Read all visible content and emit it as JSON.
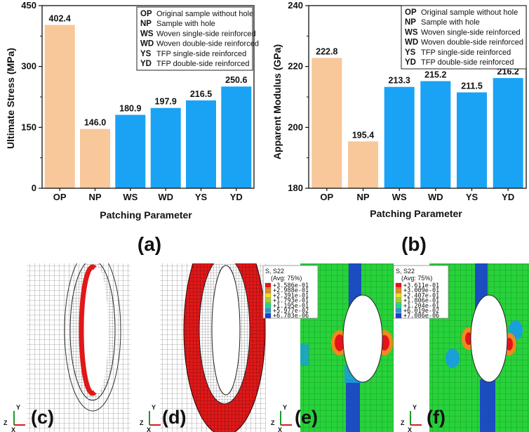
{
  "colors": {
    "peach": "#f8c79a",
    "blue": "#1aa3f5"
  },
  "chart_data": [
    {
      "type": "bar",
      "panel": "(a)",
      "categories": [
        "OP",
        "NP",
        "WS",
        "WD",
        "YS",
        "YD"
      ],
      "values": [
        402.4,
        146.0,
        180.9,
        197.9,
        216.5,
        250.6
      ],
      "value_labels": [
        "402.4",
        "146.0",
        "180.9",
        "197.9",
        "216.5",
        "250.6"
      ],
      "bar_colors": [
        "peach",
        "peach",
        "blue",
        "blue",
        "blue",
        "blue"
      ],
      "ylim": [
        0,
        450
      ],
      "yticks": [
        0,
        150,
        300,
        450
      ],
      "ytick_labels": [
        "0",
        "150",
        "300",
        "450"
      ],
      "xlabel": "Patching Parameter",
      "ylabel": "Ultimate Stress (MPa)",
      "legend_location": "top-right"
    },
    {
      "type": "bar",
      "panel": "(b)",
      "categories": [
        "OP",
        "NP",
        "WS",
        "WD",
        "YS",
        "YD"
      ],
      "values": [
        222.8,
        195.4,
        213.3,
        215.2,
        211.5,
        216.2
      ],
      "value_labels": [
        "222.8",
        "195.4",
        "213.3",
        "215.2",
        "211.5",
        "216.2"
      ],
      "bar_colors": [
        "peach",
        "peach",
        "blue",
        "blue",
        "blue",
        "blue"
      ],
      "ylim": [
        180,
        240
      ],
      "yticks": [
        180,
        200,
        220,
        240
      ],
      "ytick_labels": [
        "180",
        "200",
        "220",
        "240"
      ],
      "xlabel": "Patching Parameter",
      "ylabel": "Apparent Modulus (GPa)",
      "legend_location": "top-right"
    }
  ],
  "legend": [
    {
      "code": "OP",
      "desc": "Original sample without hole"
    },
    {
      "code": "NP",
      "desc": "Sample with hole"
    },
    {
      "code": "WS",
      "desc": "Woven single-side reinforced"
    },
    {
      "code": "WD",
      "desc": "Woven double-side reinforced"
    },
    {
      "code": "YS",
      "desc": "TFP single-side reinforced"
    },
    {
      "code": "YD",
      "desc": "TFP double-side reinforced"
    }
  ],
  "images": {
    "c_label": "(c)",
    "d_label": "(d)",
    "e_label": "(e)",
    "f_label": "(f)",
    "axis_y": "Y",
    "axis_z": "Z",
    "axis_x": "X",
    "e_legend": {
      "title": "S, S22",
      "avg": "(Avg: 75%)",
      "values": [
        "+3.586e-01",
        "+2.988e-01",
        "+2.391e-01",
        "+1.793e-01",
        "+1.195e-01",
        "+5.977e-02",
        "+6.783e-06"
      ]
    },
    "f_legend": {
      "title": "S, S22",
      "avg": "(Avg: 75%)",
      "values": [
        "+3.611e-01",
        "+3.009e-01",
        "+2.407e-01",
        "+1.806e-01",
        "+1.204e-01",
        "+6.019e-02",
        "+7.086e-06"
      ]
    },
    "contour_colors": [
      "#e4141a",
      "#f08a1c",
      "#f4e014",
      "#8fdc22",
      "#22d68a",
      "#1b9fd8",
      "#1b3fcf"
    ]
  }
}
